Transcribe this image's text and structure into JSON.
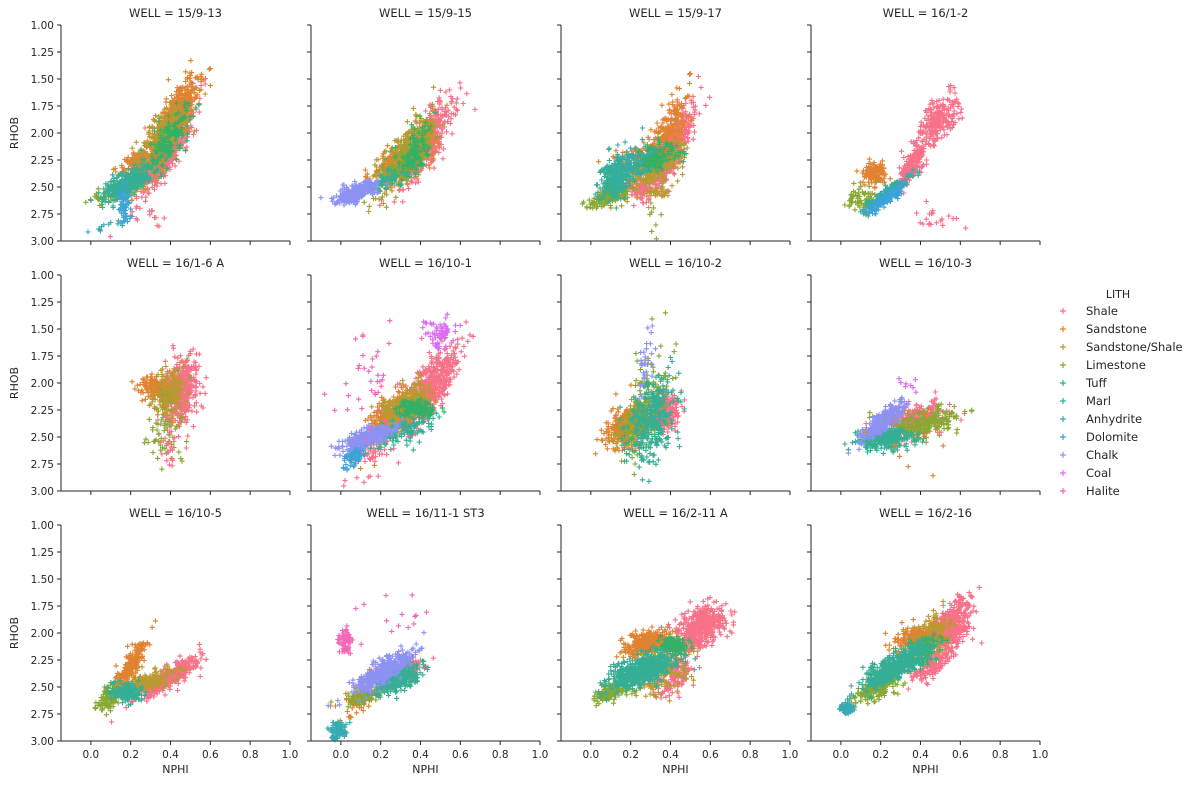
{
  "chart_data": {
    "type": "scatter",
    "marker": "+",
    "layout": "facet-grid",
    "facet_variable": "WELL",
    "facet_title_template": "WELL = {}",
    "ncols": 4,
    "xlabel": "NPHI",
    "ylabel": "RHOB",
    "xlim": [
      -0.15,
      1.0
    ],
    "ylim": [
      3.0,
      1.0
    ],
    "y_inverted": true,
    "xticks": [
      0.0,
      0.2,
      0.4,
      0.6,
      0.8,
      1.0
    ],
    "xtick_labels": [
      "0.0",
      "0.2",
      "0.4",
      "0.6",
      "0.8",
      "1.0"
    ],
    "yticks": [
      1.0,
      1.25,
      1.5,
      1.75,
      2.0,
      2.25,
      2.5,
      2.75,
      3.0
    ],
    "ytick_labels": [
      "1.00",
      "1.25",
      "1.50",
      "1.75",
      "2.00",
      "2.25",
      "2.50",
      "2.75",
      "3.00"
    ],
    "grid": false,
    "legend": {
      "title": "LITH",
      "placement": "right",
      "entries": [
        {
          "label": "Shale",
          "color": "#f77189"
        },
        {
          "label": "Sandstone",
          "color": "#e0822f"
        },
        {
          "label": "Sandstone/Shale",
          "color": "#b89a30"
        },
        {
          "label": "Limestone",
          "color": "#87a831"
        },
        {
          "label": "Tuff",
          "color": "#32b166"
        },
        {
          "label": "Marl",
          "color": "#34ae94"
        },
        {
          "label": "Anhydrite",
          "color": "#37aab4"
        },
        {
          "label": "Dolomite",
          "color": "#3ba3d8"
        },
        {
          "label": "Chalk",
          "color": "#8e91f4"
        },
        {
          "label": "Coal",
          "color": "#db6cf3"
        },
        {
          "label": "Halite",
          "color": "#f567b8"
        }
      ]
    },
    "cluster_schema": [
      "lith_index",
      "nphi_center",
      "rhob_center",
      "nphi_spread",
      "rhob_spread",
      "correlation",
      "count"
    ],
    "panels": [
      {
        "well": "15/9-13",
        "clusters": [
          [
            0,
            0.38,
            2.15,
            0.07,
            0.22,
            -0.85,
            520
          ],
          [
            0,
            0.3,
            2.78,
            0.04,
            0.06,
            0.6,
            14
          ],
          [
            1,
            0.42,
            1.85,
            0.06,
            0.18,
            -0.8,
            480
          ],
          [
            1,
            0.22,
            2.28,
            0.04,
            0.06,
            -0.4,
            90
          ],
          [
            2,
            0.35,
            2.1,
            0.07,
            0.2,
            -0.8,
            300
          ],
          [
            3,
            0.12,
            2.55,
            0.06,
            0.06,
            -0.6,
            90
          ],
          [
            4,
            0.4,
            2.05,
            0.05,
            0.15,
            -0.7,
            160
          ],
          [
            5,
            0.18,
            2.47,
            0.06,
            0.08,
            -0.7,
            320
          ],
          [
            6,
            0.08,
            2.86,
            0.05,
            0.03,
            -0.8,
            14
          ],
          [
            7,
            0.17,
            2.68,
            0.015,
            0.08,
            0.0,
            60
          ]
        ]
      },
      {
        "well": "15/9-15",
        "clusters": [
          [
            0,
            0.42,
            2.1,
            0.07,
            0.2,
            -0.8,
            520
          ],
          [
            1,
            0.3,
            2.25,
            0.08,
            0.1,
            -0.7,
            280
          ],
          [
            2,
            0.35,
            2.15,
            0.07,
            0.17,
            -0.8,
            380
          ],
          [
            3,
            0.3,
            2.3,
            0.08,
            0.14,
            -0.7,
            120
          ],
          [
            4,
            0.37,
            2.2,
            0.04,
            0.12,
            -0.6,
            120
          ],
          [
            5,
            0.22,
            2.45,
            0.06,
            0.06,
            -0.6,
            60
          ],
          [
            8,
            0.08,
            2.55,
            0.05,
            0.05,
            -0.6,
            260
          ]
        ]
      },
      {
        "well": "15/9-17",
        "clusters": [
          [
            0,
            0.4,
            2.15,
            0.06,
            0.2,
            -0.8,
            460
          ],
          [
            0,
            0.24,
            2.52,
            0.03,
            0.05,
            0.0,
            80
          ],
          [
            1,
            0.4,
            1.95,
            0.05,
            0.15,
            -0.7,
            160
          ],
          [
            1,
            0.25,
            2.2,
            0.08,
            0.05,
            -0.4,
            60
          ],
          [
            2,
            0.3,
            2.32,
            0.08,
            0.12,
            -0.6,
            320
          ],
          [
            2,
            0.33,
            2.55,
            0.03,
            0.02,
            0.0,
            30
          ],
          [
            3,
            0.1,
            2.58,
            0.05,
            0.05,
            -0.6,
            160
          ],
          [
            3,
            0.33,
            2.8,
            0.02,
            0.08,
            0.0,
            8
          ],
          [
            4,
            0.3,
            2.25,
            0.06,
            0.07,
            -0.5,
            180
          ],
          [
            5,
            0.12,
            2.42,
            0.04,
            0.1,
            -0.3,
            260
          ],
          [
            6,
            0.2,
            2.3,
            0.06,
            0.1,
            -0.5,
            60
          ]
        ]
      },
      {
        "well": "16/1-2",
        "clusters": [
          [
            0,
            0.48,
            1.9,
            0.06,
            0.14,
            -0.7,
            260
          ],
          [
            0,
            0.36,
            2.3,
            0.03,
            0.09,
            -0.7,
            180
          ],
          [
            0,
            0.48,
            2.8,
            0.07,
            0.06,
            0.5,
            20
          ],
          [
            1,
            0.17,
            2.37,
            0.03,
            0.05,
            0.0,
            140
          ],
          [
            3,
            0.1,
            2.6,
            0.04,
            0.06,
            0.0,
            60
          ],
          [
            5,
            0.23,
            2.57,
            0.05,
            0.07,
            -0.9,
            220
          ],
          [
            7,
            0.23,
            2.6,
            0.045,
            0.06,
            -0.9,
            160
          ]
        ]
      },
      {
        "well": "16/1-6 A",
        "clusters": [
          [
            0,
            0.45,
            2.08,
            0.04,
            0.15,
            -0.3,
            480
          ],
          [
            1,
            0.32,
            2.05,
            0.04,
            0.06,
            0.2,
            140
          ],
          [
            2,
            0.4,
            2.1,
            0.04,
            0.12,
            -0.2,
            160
          ],
          [
            3,
            0.38,
            2.45,
            0.05,
            0.2,
            0.0,
            60
          ],
          [
            0,
            0.4,
            2.62,
            0.03,
            0.08,
            0.0,
            20
          ]
        ]
      },
      {
        "well": "16/10-1",
        "clusters": [
          [
            0,
            0.45,
            2.05,
            0.07,
            0.2,
            -0.8,
            560
          ],
          [
            0,
            0.15,
            2.65,
            0.05,
            0.12,
            -0.5,
            60
          ],
          [
            1,
            0.25,
            2.3,
            0.07,
            0.13,
            -0.7,
            300
          ],
          [
            2,
            0.33,
            2.2,
            0.06,
            0.1,
            -0.6,
            260
          ],
          [
            4,
            0.38,
            2.25,
            0.05,
            0.04,
            0.0,
            140
          ],
          [
            5,
            0.3,
            2.45,
            0.08,
            0.07,
            -0.5,
            120
          ],
          [
            7,
            0.08,
            2.62,
            0.03,
            0.08,
            -0.7,
            140
          ],
          [
            8,
            0.14,
            2.5,
            0.06,
            0.05,
            -0.7,
            320
          ],
          [
            9,
            0.5,
            1.55,
            0.04,
            0.08,
            0.0,
            60
          ],
          [
            10,
            0.15,
            1.95,
            0.1,
            0.25,
            0.0,
            40
          ]
        ]
      },
      {
        "well": "16/10-2",
        "clusters": [
          [
            0,
            0.38,
            2.28,
            0.03,
            0.08,
            -0.3,
            260
          ],
          [
            1,
            0.18,
            2.4,
            0.05,
            0.1,
            -0.4,
            260
          ],
          [
            2,
            0.22,
            2.4,
            0.05,
            0.1,
            -0.4,
            200
          ],
          [
            3,
            0.28,
            2.2,
            0.06,
            0.25,
            -0.5,
            160
          ],
          [
            5,
            0.3,
            2.35,
            0.06,
            0.2,
            -0.4,
            320
          ],
          [
            8,
            0.28,
            1.75,
            0.02,
            0.15,
            -0.5,
            30
          ]
        ]
      },
      {
        "well": "16/10-3",
        "clusters": [
          [
            0,
            0.38,
            2.35,
            0.08,
            0.08,
            -0.4,
            320
          ],
          [
            3,
            0.4,
            2.38,
            0.1,
            0.07,
            -0.4,
            200
          ],
          [
            5,
            0.22,
            2.52,
            0.07,
            0.05,
            -0.3,
            300
          ],
          [
            8,
            0.22,
            2.35,
            0.05,
            0.08,
            -0.8,
            300
          ],
          [
            9,
            0.35,
            2.0,
            0.03,
            0.05,
            0.0,
            8
          ],
          [
            1,
            0.35,
            2.6,
            0.1,
            0.1,
            0.0,
            10
          ]
        ]
      },
      {
        "well": "16/10-5",
        "clusters": [
          [
            0,
            0.38,
            2.42,
            0.08,
            0.1,
            -0.85,
            360
          ],
          [
            1,
            0.2,
            2.3,
            0.04,
            0.12,
            -0.85,
            200
          ],
          [
            2,
            0.28,
            2.45,
            0.08,
            0.06,
            -0.6,
            160
          ],
          [
            3,
            0.1,
            2.58,
            0.03,
            0.06,
            -0.4,
            120
          ],
          [
            5,
            0.18,
            2.55,
            0.04,
            0.04,
            0.0,
            160
          ]
        ]
      },
      {
        "well": "16/11-1 ST3",
        "clusters": [
          [
            0,
            0.33,
            2.35,
            0.04,
            0.06,
            -0.5,
            160
          ],
          [
            1,
            0.12,
            2.55,
            0.06,
            0.1,
            -0.6,
            120
          ],
          [
            3,
            0.1,
            2.6,
            0.05,
            0.05,
            -0.5,
            60
          ],
          [
            5,
            0.28,
            2.42,
            0.06,
            0.06,
            -0.4,
            360
          ],
          [
            6,
            -0.01,
            2.9,
            0.02,
            0.05,
            0.0,
            80
          ],
          [
            8,
            0.22,
            2.35,
            0.08,
            0.1,
            -0.85,
            340
          ],
          [
            10,
            0.02,
            2.08,
            0.015,
            0.05,
            0.0,
            80
          ],
          [
            10,
            0.22,
            1.8,
            0.12,
            0.1,
            0.0,
            14
          ]
        ]
      },
      {
        "well": "16/2-11 A",
        "clusters": [
          [
            0,
            0.55,
            1.95,
            0.06,
            0.1,
            -0.4,
            480
          ],
          [
            0,
            0.42,
            2.4,
            0.05,
            0.1,
            -0.6,
            120
          ],
          [
            1,
            0.28,
            2.1,
            0.06,
            0.06,
            -0.4,
            300
          ],
          [
            2,
            0.35,
            2.35,
            0.08,
            0.12,
            -0.5,
            200
          ],
          [
            3,
            0.1,
            2.55,
            0.04,
            0.05,
            -0.6,
            140
          ],
          [
            4,
            0.42,
            2.12,
            0.04,
            0.04,
            0.0,
            120
          ],
          [
            5,
            0.25,
            2.35,
            0.08,
            0.08,
            -0.6,
            600
          ]
        ]
      },
      {
        "well": "16/2-16",
        "clusters": [
          [
            0,
            0.55,
            1.95,
            0.05,
            0.12,
            -0.5,
            460
          ],
          [
            0,
            0.45,
            2.3,
            0.05,
            0.08,
            -0.6,
            140
          ],
          [
            1,
            0.38,
            2.05,
            0.06,
            0.06,
            -0.3,
            220
          ],
          [
            2,
            0.45,
            2.05,
            0.05,
            0.12,
            -0.5,
            120
          ],
          [
            3,
            0.18,
            2.5,
            0.06,
            0.08,
            -0.7,
            200
          ],
          [
            4,
            0.42,
            2.15,
            0.04,
            0.08,
            -0.4,
            80
          ],
          [
            5,
            0.28,
            2.3,
            0.08,
            0.1,
            -0.8,
            600
          ],
          [
            6,
            0.03,
            2.7,
            0.015,
            0.02,
            0.0,
            120
          ]
        ]
      }
    ]
  }
}
